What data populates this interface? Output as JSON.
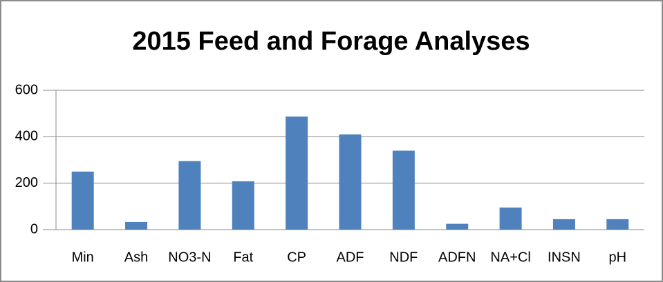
{
  "chart_data": {
    "type": "bar",
    "title": "2015 Feed and Forage Analyses",
    "categories": [
      "Min",
      "Ash",
      "NO3-N",
      "Fat",
      "CP",
      "ADF",
      "NDF",
      "ADFN",
      "NA+Cl",
      "INSN",
      "pH"
    ],
    "values": [
      250,
      33,
      295,
      208,
      487,
      410,
      340,
      25,
      95,
      45,
      45
    ],
    "color": "#4f81bd",
    "ylim": [
      0,
      600
    ],
    "yticks": [
      0,
      200,
      400,
      600
    ],
    "grid": true
  }
}
